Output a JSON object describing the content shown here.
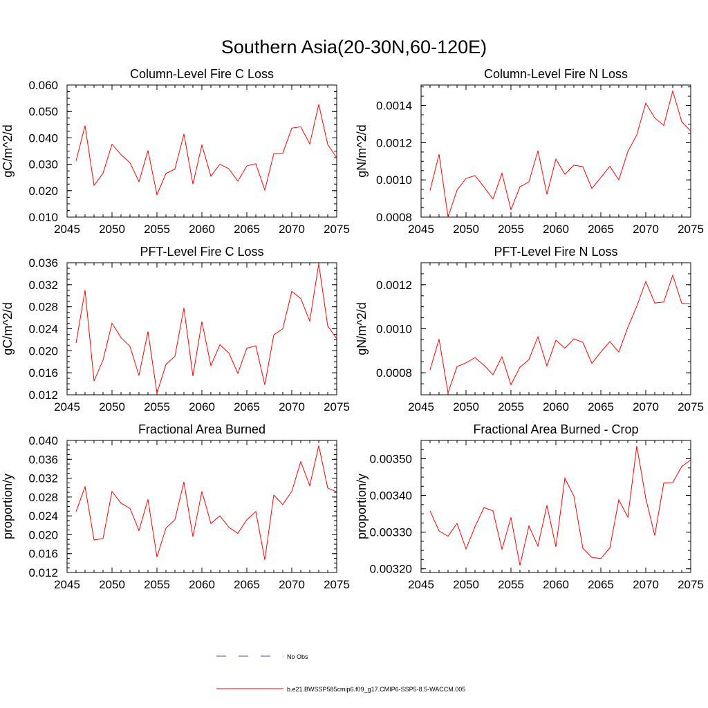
{
  "figure": {
    "title": "Southern Asia(20-30N,60-120E)",
    "legend": [
      {
        "label": "No Obs",
        "color": "#4a4aa8",
        "style": "dashed"
      },
      {
        "label": "b.e21.BWSSP585cmip6.f09_g17.CMIP6-SSP5-8.5-WACCM.005",
        "color": "#ff0000",
        "style": "solid"
      }
    ],
    "line_color": "#ff0000"
  },
  "chart_data": [
    {
      "type": "line",
      "title": "Column-Level Fire C Loss",
      "ylabel": "gC/m^2/d",
      "xlim": [
        2045,
        2075
      ],
      "ylim": [
        0.01,
        0.06
      ],
      "xticks": [
        "2045",
        "2050",
        "2055",
        "2060",
        "2065",
        "2070",
        "2075"
      ],
      "yticks": [
        "0.010",
        "0.020",
        "0.030",
        "0.040",
        "0.050",
        "0.060"
      ],
      "x": [
        2046,
        2047,
        2048,
        2049,
        2050,
        2051,
        2052,
        2053,
        2054,
        2055,
        2056,
        2057,
        2058,
        2059,
        2060,
        2061,
        2062,
        2063,
        2064,
        2065,
        2066,
        2067,
        2068,
        2069,
        2070,
        2071,
        2072,
        2073,
        2074,
        2075
      ],
      "values": [
        0.0313,
        0.0446,
        0.022,
        0.0266,
        0.0376,
        0.0336,
        0.0306,
        0.0234,
        0.0352,
        0.0185,
        0.0265,
        0.0282,
        0.0415,
        0.0225,
        0.0373,
        0.0255,
        0.03,
        0.0283,
        0.0236,
        0.0294,
        0.0302,
        0.0202,
        0.034,
        0.0342,
        0.0437,
        0.0442,
        0.0377,
        0.0527,
        0.0375,
        0.0325
      ]
    },
    {
      "type": "line",
      "title": "Column-Level Fire N Loss",
      "ylabel": "gN/m^2/d",
      "xlim": [
        2045,
        2075
      ],
      "ylim": [
        0.0008,
        0.00151
      ],
      "xticks": [
        "2045",
        "2050",
        "2055",
        "2060",
        "2065",
        "2070",
        "2075"
      ],
      "yticks": [
        "0.0008",
        "0.0010",
        "0.0012",
        "0.0014"
      ],
      "x": [
        2046,
        2047,
        2048,
        2049,
        2050,
        2051,
        2052,
        2053,
        2054,
        2055,
        2056,
        2057,
        2058,
        2059,
        2060,
        2061,
        2062,
        2063,
        2064,
        2065,
        2066,
        2067,
        2068,
        2069,
        2070,
        2071,
        2072,
        2073,
        2074,
        2075
      ],
      "values": [
        0.000943,
        0.001138,
        0.0008,
        0.000945,
        0.001008,
        0.001023,
        0.000962,
        0.000897,
        0.001036,
        0.00084,
        0.000963,
        0.00099,
        0.001157,
        0.000922,
        0.001112,
        0.00103,
        0.001079,
        0.001071,
        0.000954,
        0.001013,
        0.001073,
        0.001,
        0.001152,
        0.001242,
        0.001413,
        0.001333,
        0.001293,
        0.001478,
        0.001313,
        0.001262
      ]
    },
    {
      "type": "line",
      "title": "PFT-Level Fire C Loss",
      "ylabel": "gC/m^2/d",
      "xlim": [
        2045,
        2075
      ],
      "ylim": [
        0.012,
        0.036
      ],
      "xticks": [
        "2045",
        "2050",
        "2055",
        "2060",
        "2065",
        "2070",
        "2075"
      ],
      "yticks": [
        "0.012",
        "0.016",
        "0.020",
        "0.024",
        "0.028",
        "0.032",
        "0.036"
      ],
      "x": [
        2046,
        2047,
        2048,
        2049,
        2050,
        2051,
        2052,
        2053,
        2054,
        2055,
        2056,
        2057,
        2058,
        2059,
        2060,
        2061,
        2062,
        2063,
        2064,
        2065,
        2066,
        2067,
        2068,
        2069,
        2070,
        2071,
        2072,
        2073,
        2074,
        2075
      ],
      "values": [
        0.0214,
        0.031,
        0.0145,
        0.0183,
        0.025,
        0.0224,
        0.0208,
        0.0155,
        0.0235,
        0.0123,
        0.0175,
        0.019,
        0.0278,
        0.0154,
        0.0253,
        0.0173,
        0.0211,
        0.0196,
        0.0159,
        0.0205,
        0.0209,
        0.0138,
        0.0229,
        0.024,
        0.0308,
        0.0295,
        0.0254,
        0.0358,
        0.0245,
        0.0222
      ]
    },
    {
      "type": "line",
      "title": "PFT-Level Fire N Loss",
      "ylabel": "gN/m^2/d",
      "xlim": [
        2045,
        2075
      ],
      "ylim": [
        0.0007,
        0.0013
      ],
      "xticks": [
        "2045",
        "2050",
        "2055",
        "2060",
        "2065",
        "2070",
        "2075"
      ],
      "yticks": [
        "0.0008",
        "0.0010",
        "0.0012"
      ],
      "x": [
        2046,
        2047,
        2048,
        2049,
        2050,
        2051,
        2052,
        2053,
        2054,
        2055,
        2056,
        2057,
        2058,
        2059,
        2060,
        2061,
        2062,
        2063,
        2064,
        2065,
        2066,
        2067,
        2068,
        2069,
        2070,
        2071,
        2072,
        2073,
        2074,
        2075
      ],
      "values": [
        0.000813,
        0.000953,
        0.000709,
        0.000828,
        0.000845,
        0.000869,
        0.000834,
        0.000791,
        0.000873,
        0.000746,
        0.000825,
        0.00086,
        0.000964,
        0.000831,
        0.000948,
        0.000912,
        0.000954,
        0.000938,
        0.000843,
        0.000894,
        0.000942,
        0.000894,
        0.001006,
        0.001102,
        0.001215,
        0.001117,
        0.001122,
        0.001243,
        0.001116,
        0.001112
      ]
    },
    {
      "type": "line",
      "title": "Fractional Area Burned",
      "ylabel": "proportion/y",
      "xlim": [
        2045,
        2075
      ],
      "ylim": [
        0.012,
        0.04
      ],
      "xticks": [
        "2045",
        "2050",
        "2055",
        "2060",
        "2065",
        "2070",
        "2075"
      ],
      "yticks": [
        "0.012",
        "0.016",
        "0.020",
        "0.024",
        "0.028",
        "0.032",
        "0.036",
        "0.040"
      ],
      "x": [
        2046,
        2047,
        2048,
        2049,
        2050,
        2051,
        2052,
        2053,
        2054,
        2055,
        2056,
        2057,
        2058,
        2059,
        2060,
        2061,
        2062,
        2063,
        2064,
        2065,
        2066,
        2067,
        2068,
        2069,
        2070,
        2071,
        2072,
        2073,
        2074,
        2075
      ],
      "values": [
        0.0249,
        0.0302,
        0.0189,
        0.0192,
        0.0292,
        0.0267,
        0.0256,
        0.0209,
        0.0275,
        0.0153,
        0.0214,
        0.0232,
        0.0312,
        0.0196,
        0.0292,
        0.0224,
        0.024,
        0.0216,
        0.0203,
        0.0232,
        0.0249,
        0.0147,
        0.0284,
        0.0264,
        0.0292,
        0.0355,
        0.0304,
        0.0389,
        0.0299,
        0.0291
      ]
    },
    {
      "type": "line",
      "title": "Fractional Area Burned - Crop",
      "ylabel": "proportion/y",
      "xlim": [
        2045,
        2075
      ],
      "ylim": [
        0.00319,
        0.00355
      ],
      "xticks": [
        "2045",
        "2050",
        "2055",
        "2060",
        "2065",
        "2070",
        "2075"
      ],
      "yticks": [
        "0.00320",
        "0.00330",
        "0.00340",
        "0.00350"
      ],
      "x": [
        2046,
        2047,
        2048,
        2049,
        2050,
        2051,
        2052,
        2053,
        2054,
        2055,
        2056,
        2057,
        2058,
        2059,
        2060,
        2061,
        2062,
        2063,
        2064,
        2065,
        2066,
        2067,
        2068,
        2069,
        2070,
        2071,
        2072,
        2073,
        2074,
        2075
      ],
      "values": [
        0.003358,
        0.003303,
        0.003289,
        0.003324,
        0.003254,
        0.003315,
        0.003367,
        0.003358,
        0.003253,
        0.00334,
        0.003209,
        0.003317,
        0.003262,
        0.003373,
        0.00326,
        0.003447,
        0.003398,
        0.003256,
        0.003231,
        0.003228,
        0.003257,
        0.003388,
        0.003341,
        0.003535,
        0.003392,
        0.003291,
        0.003434,
        0.003435,
        0.003479,
        0.003497
      ]
    }
  ]
}
